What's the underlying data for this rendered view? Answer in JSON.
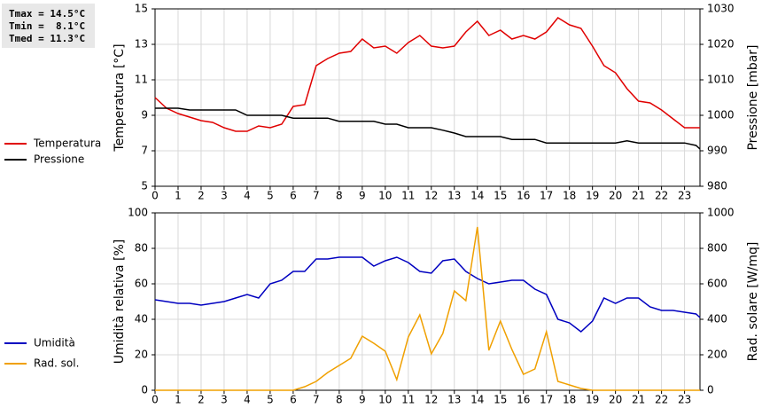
{
  "stats": [
    "Tmax = 14.5°C",
    "Tmin =  8.1°C",
    "Tmed = 11.3°C"
  ],
  "chart_data": [
    {
      "type": "line",
      "ylabel": "Temperatura [°C]",
      "y2label": "Pressione [mbar]",
      "x": [
        0,
        0.5,
        1,
        1.5,
        2,
        2.5,
        3,
        3.5,
        4,
        4.5,
        5,
        5.5,
        6,
        6.5,
        7,
        7.5,
        8,
        8.5,
        9,
        9.5,
        10,
        10.5,
        11,
        11.5,
        12,
        12.5,
        13,
        13.5,
        14,
        14.5,
        15,
        15.5,
        16,
        16.5,
        17,
        17.5,
        18,
        18.5,
        19,
        19.5,
        20,
        20.5,
        21,
        21.5,
        22,
        22.5,
        23,
        23.5,
        23.67
      ],
      "xlim": [
        0,
        23.67
      ],
      "xticks": [
        0,
        1,
        2,
        3,
        4,
        5,
        6,
        7,
        8,
        9,
        10,
        11,
        12,
        13,
        14,
        15,
        16,
        17,
        18,
        19,
        20,
        21,
        22,
        23
      ],
      "ylim": [
        5,
        15
      ],
      "yticks": [
        5,
        7,
        9,
        11,
        13,
        15
      ],
      "y2lim": [
        980,
        1030
      ],
      "y2ticks": [
        980,
        990,
        1000,
        1010,
        1020,
        1030
      ],
      "grid": true,
      "series": [
        {
          "name": "Temperatura",
          "color": "#e00000",
          "values": [
            10.0,
            9.4,
            9.1,
            8.9,
            8.7,
            8.6,
            8.3,
            8.1,
            8.1,
            8.4,
            8.3,
            8.5,
            9.5,
            9.6,
            11.8,
            12.2,
            12.5,
            12.6,
            13.3,
            12.8,
            12.9,
            12.5,
            13.1,
            13.5,
            12.9,
            12.8,
            12.9,
            13.7,
            14.3,
            13.5,
            13.8,
            13.3,
            13.5,
            13.3,
            13.7,
            14.5,
            14.1,
            13.9,
            12.9,
            11.8,
            11.4,
            10.5,
            9.8,
            9.7,
            9.3,
            8.8,
            8.3,
            8.3,
            8.3
          ]
        },
        {
          "name": "Pressione",
          "color": "#000000",
          "axis": "y2",
          "values": [
            1002,
            1002,
            1002,
            1001.5,
            1001.5,
            1001.5,
            1001.5,
            1001.5,
            1000,
            1000,
            1000,
            1000,
            999.2,
            999.2,
            999.2,
            999.2,
            998.3,
            998.3,
            998.3,
            998.3,
            997.5,
            997.5,
            996.5,
            996.5,
            996.5,
            995.8,
            995,
            994,
            994,
            994,
            994,
            993.2,
            993.2,
            993.2,
            992.2,
            992.2,
            992.2,
            992.2,
            992.2,
            992.2,
            992.2,
            992.8,
            992.2,
            992.2,
            992.2,
            992.2,
            992.2,
            991.5,
            990.5
          ]
        }
      ]
    },
    {
      "type": "line",
      "ylabel": "Umidità relativa [%]",
      "y2label": "Rad. solare [W/mq]",
      "x": [
        0,
        0.5,
        1,
        1.5,
        2,
        2.5,
        3,
        3.5,
        4,
        4.5,
        5,
        5.5,
        6,
        6.5,
        7,
        7.5,
        8,
        8.5,
        9,
        9.5,
        10,
        10.5,
        11,
        11.5,
        12,
        12.5,
        13,
        13.5,
        14,
        14.5,
        15,
        15.5,
        16,
        16.5,
        17,
        17.5,
        18,
        18.5,
        19,
        19.5,
        20,
        20.5,
        21,
        21.5,
        22,
        22.5,
        23,
        23.5,
        23.67
      ],
      "xlim": [
        0,
        23.67
      ],
      "xticks": [
        0,
        1,
        2,
        3,
        4,
        5,
        6,
        7,
        8,
        9,
        10,
        11,
        12,
        13,
        14,
        15,
        16,
        17,
        18,
        19,
        20,
        21,
        22,
        23
      ],
      "ylim": [
        0,
        100
      ],
      "yticks": [
        0,
        20,
        40,
        60,
        80,
        100
      ],
      "y2lim": [
        0,
        1000
      ],
      "y2ticks": [
        0,
        200,
        400,
        600,
        800,
        1000
      ],
      "grid": true,
      "series": [
        {
          "name": "Umidità",
          "color": "#0000c0",
          "values": [
            51,
            50,
            49,
            49,
            48,
            49,
            50,
            52,
            54,
            52,
            60,
            62,
            67,
            67,
            74,
            74,
            75,
            75,
            75,
            70,
            73,
            75,
            72,
            67,
            66,
            73,
            74,
            67,
            63,
            60,
            61,
            62,
            62,
            57,
            54,
            40,
            38,
            33,
            39,
            52,
            49,
            52,
            52,
            47,
            45,
            45,
            44,
            43,
            41
          ]
        },
        {
          "name": "Rad. sol.",
          "color": "#f0a000",
          "axis": "y2",
          "values": [
            0,
            0,
            0,
            0,
            0,
            0,
            0,
            0,
            0,
            0,
            0,
            0,
            0,
            20,
            50,
            100,
            140,
            180,
            305,
            265,
            220,
            60,
            300,
            425,
            205,
            320,
            560,
            505,
            920,
            225,
            390,
            230,
            90,
            120,
            330,
            50,
            30,
            10,
            0,
            0,
            0,
            0,
            0,
            0,
            0,
            0,
            0,
            0,
            0
          ]
        }
      ]
    }
  ]
}
